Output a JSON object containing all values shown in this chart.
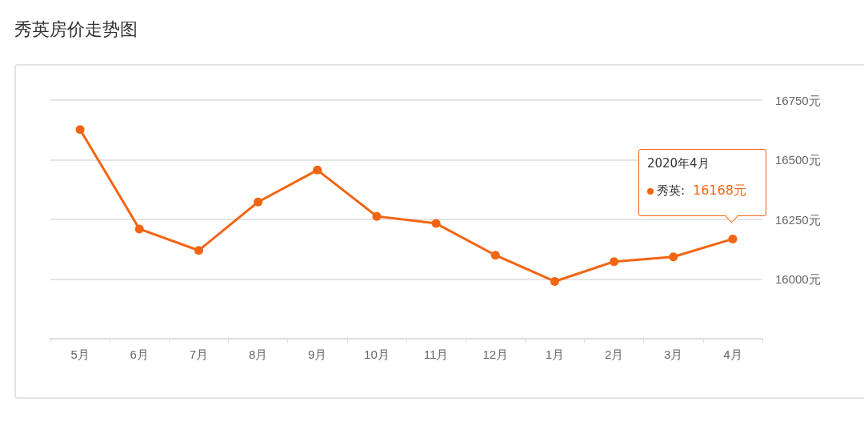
{
  "chart_data": {
    "type": "line",
    "title": "秀英房价走势图",
    "categories": [
      "5月",
      "6月",
      "7月",
      "8月",
      "9月",
      "10月",
      "11月",
      "12月",
      "1月",
      "2月",
      "3月",
      "4月"
    ],
    "series": [
      {
        "color": "#f26512",
        "values": [
          16627,
          16210,
          16120,
          16323,
          16457,
          16263,
          16233,
          16100,
          15990,
          16073,
          16093,
          16168
        ],
        "value_labels": [
          null,
          null,
          null,
          null,
          null,
          null,
          null,
          null,
          null,
          null,
          null,
          "16168元"
        ]
      }
    ],
    "ylim": [
      15750,
      16750
    ],
    "yticks": [
      {
        "value": 15750,
        "label": null
      },
      {
        "value": 16000,
        "label": "16000元"
      },
      {
        "value": 16250,
        "label": "16250元"
      },
      {
        "value": 16500,
        "label": "16500元"
      },
      {
        "value": 16750,
        "label": "16750元"
      }
    ],
    "grid": "y",
    "marker": "circle",
    "line_style": "solid",
    "annotations": [
      "2020年4月",
      "秀英:"
    ]
  }
}
